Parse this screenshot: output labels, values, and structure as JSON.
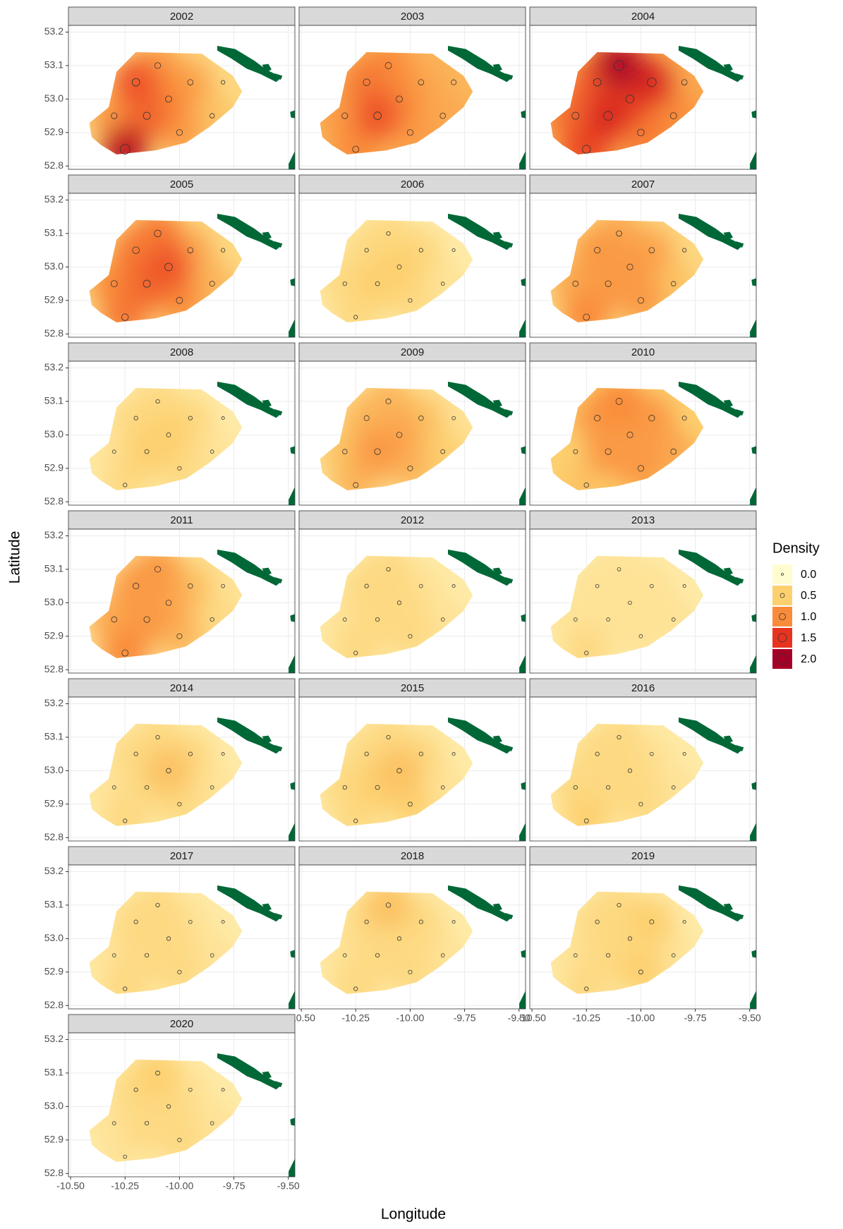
{
  "chart_data": {
    "type": "facet-map",
    "x_label": "Longitude",
    "y_label": "Latitude",
    "legend_title": "Density",
    "xlim": [
      -10.51,
      -9.47
    ],
    "ylim": [
      52.79,
      53.22
    ],
    "xticks": [
      {
        "value": -10.5,
        "label": "-10.50"
      },
      {
        "value": -10.25,
        "label": "-10.25"
      },
      {
        "value": -10.0,
        "label": "-10.00"
      },
      {
        "value": -9.75,
        "label": "-9.75"
      },
      {
        "value": -9.5,
        "label": "-9.50"
      }
    ],
    "yticks": [
      {
        "value": 52.8,
        "label": "52.8"
      },
      {
        "value": 52.9,
        "label": "52.9"
      },
      {
        "value": 53.0,
        "label": "53.0"
      },
      {
        "value": 53.1,
        "label": "53.1"
      },
      {
        "value": 53.2,
        "label": "53.2"
      }
    ],
    "grid": true,
    "legend": [
      {
        "value": 0,
        "label": "0.0",
        "color": "#fffdd0"
      },
      {
        "value": 0.5,
        "label": "0.5",
        "color": "#fdd06f"
      },
      {
        "value": 1,
        "label": "1.0",
        "color": "#f98c3a"
      },
      {
        "value": 1.5,
        "label": "1.5",
        "color": "#e8341f"
      },
      {
        "value": 2,
        "label": "2.0",
        "color": "#a50026"
      }
    ],
    "x": [
      -10.25,
      -10.3,
      -10.2,
      -10.15,
      -10.1,
      -10.05,
      -10.0,
      -9.95,
      -9.85,
      -9.8
    ],
    "y": [
      52.85,
      52.95,
      53.05,
      52.95,
      53.1,
      53.0,
      52.9,
      53.05,
      52.95,
      53.05
    ],
    "facets": [
      {
        "label": "2002",
        "values": [
          1.8,
          0.9,
          1.3,
          1.2,
          0.9,
          1.0,
          0.9,
          0.8,
          0.6,
          0.4
        ]
      },
      {
        "label": "2003",
        "values": [
          1.0,
          0.9,
          1.1,
          1.3,
          1.0,
          1.0,
          0.9,
          0.8,
          0.8,
          0.7
        ]
      },
      {
        "label": "2004",
        "values": [
          1.4,
          1.2,
          1.3,
          1.6,
          1.9,
          1.4,
          1.1,
          1.6,
          1.0,
          0.8
        ]
      },
      {
        "label": "2005",
        "values": [
          1.1,
          1.0,
          1.1,
          1.2,
          1.1,
          1.3,
          1.0,
          0.8,
          0.7,
          0.4
        ]
      },
      {
        "label": "2006",
        "values": [
          0.4,
          0.4,
          0.4,
          0.5,
          0.4,
          0.5,
          0.4,
          0.4,
          0.3,
          0.2
        ]
      },
      {
        "label": "2007",
        "values": [
          1.0,
          0.8,
          0.9,
          0.9,
          0.8,
          0.9,
          0.9,
          0.8,
          0.6,
          0.4
        ]
      },
      {
        "label": "2008",
        "values": [
          0.4,
          0.3,
          0.4,
          0.5,
          0.4,
          0.5,
          0.4,
          0.4,
          0.3,
          0.2
        ]
      },
      {
        "label": "2009",
        "values": [
          0.7,
          0.6,
          0.7,
          0.9,
          0.7,
          0.8,
          0.7,
          0.6,
          0.5,
          0.3
        ]
      },
      {
        "label": "2010",
        "values": [
          0.6,
          0.5,
          0.9,
          0.9,
          1.0,
          0.9,
          0.9,
          0.9,
          0.8,
          0.5
        ]
      },
      {
        "label": "2011",
        "values": [
          1.0,
          0.8,
          0.9,
          0.9,
          0.9,
          0.8,
          0.7,
          0.6,
          0.4,
          0.3
        ]
      },
      {
        "label": "2012",
        "values": [
          0.4,
          0.3,
          0.4,
          0.4,
          0.4,
          0.4,
          0.4,
          0.3,
          0.3,
          0.2
        ]
      },
      {
        "label": "2013",
        "values": [
          0.4,
          0.3,
          0.3,
          0.3,
          0.3,
          0.3,
          0.3,
          0.3,
          0.3,
          0.2
        ]
      },
      {
        "label": "2014",
        "values": [
          0.4,
          0.3,
          0.4,
          0.4,
          0.4,
          0.6,
          0.4,
          0.4,
          0.3,
          0.2
        ]
      },
      {
        "label": "2015",
        "values": [
          0.4,
          0.4,
          0.4,
          0.5,
          0.4,
          0.6,
          0.5,
          0.4,
          0.3,
          0.2
        ]
      },
      {
        "label": "2016",
        "values": [
          0.5,
          0.4,
          0.4,
          0.4,
          0.4,
          0.4,
          0.4,
          0.3,
          0.3,
          0.2
        ]
      },
      {
        "label": "2017",
        "values": [
          0.4,
          0.3,
          0.4,
          0.4,
          0.4,
          0.4,
          0.4,
          0.3,
          0.3,
          0.2
        ]
      },
      {
        "label": "2018",
        "values": [
          0.4,
          0.3,
          0.4,
          0.4,
          0.6,
          0.4,
          0.4,
          0.4,
          0.3,
          0.2
        ]
      },
      {
        "label": "2019",
        "values": [
          0.4,
          0.3,
          0.4,
          0.4,
          0.4,
          0.4,
          0.5,
          0.5,
          0.3,
          0.2
        ]
      },
      {
        "label": "2020",
        "values": [
          0.3,
          0.3,
          0.4,
          0.4,
          0.5,
          0.4,
          0.4,
          0.3,
          0.3,
          0.2
        ]
      }
    ]
  }
}
